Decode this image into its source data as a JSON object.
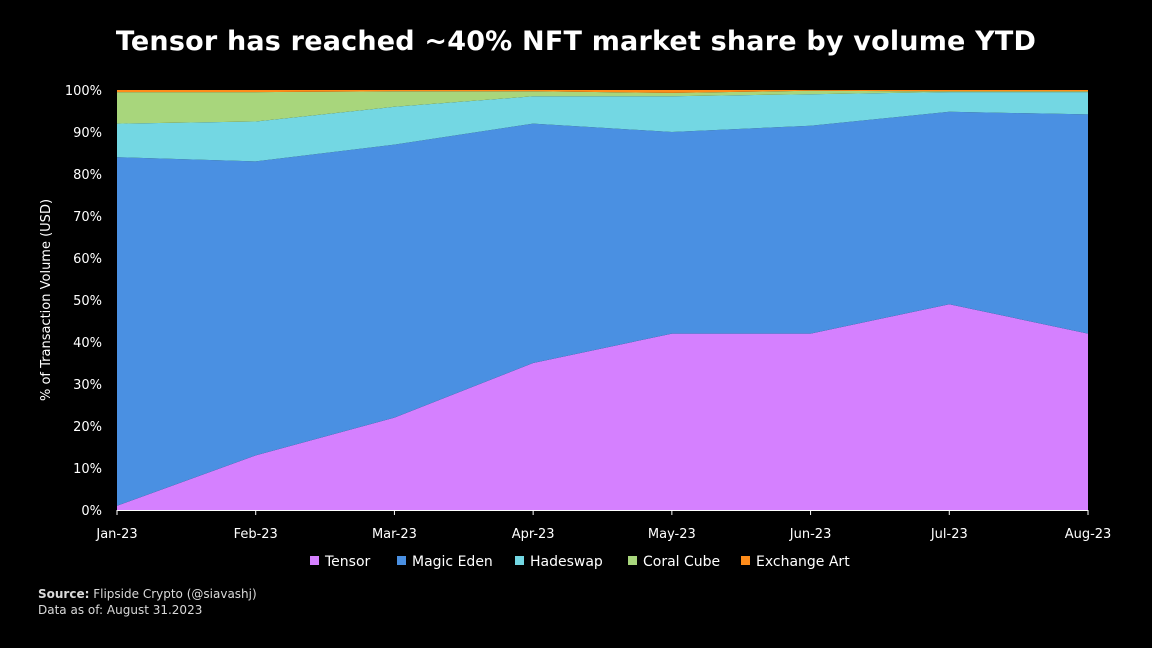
{
  "title": "Tensor has reached ~40% NFT market share by volume YTD",
  "source_label": "Source:",
  "source_text": "Flipside Crypto (@siavashj)",
  "data_as_of_label": "Data as of:",
  "data_as_of_text": "August 31.2023",
  "chart_data": {
    "type": "area",
    "stacked": true,
    "normalized": true,
    "ylabel": "% of Transaction Volume (USD)",
    "xlabel": "",
    "ylim": [
      0,
      100
    ],
    "y_ticks": [
      "0%",
      "10%",
      "20%",
      "30%",
      "40%",
      "50%",
      "60%",
      "70%",
      "80%",
      "90%",
      "100%"
    ],
    "categories": [
      "Jan-23",
      "Feb-23",
      "Mar-23",
      "Apr-23",
      "May-23",
      "Jun-23",
      "Jul-23",
      "Aug-23"
    ],
    "legend_position": "bottom",
    "series": [
      {
        "name": "Tensor",
        "color": "#D580FF",
        "values": [
          1,
          13,
          22,
          35,
          42,
          42,
          49,
          42
        ]
      },
      {
        "name": "Magic Eden",
        "color": "#4A90E2",
        "values": [
          83,
          70,
          65,
          57,
          48,
          49.5,
          45.8,
          52.2
        ]
      },
      {
        "name": "Hadeswap",
        "color": "#73D7E3",
        "values": [
          8,
          9.5,
          9,
          6.5,
          8.5,
          7.5,
          4.7,
          5.3
        ]
      },
      {
        "name": "Coral Cube",
        "color": "#A8D67C",
        "values": [
          7.5,
          7,
          3.7,
          1.2,
          0.8,
          0.8,
          0.2,
          0.2
        ]
      },
      {
        "name": "Exchange Art",
        "color": "#FF8C1A",
        "values": [
          0.5,
          0.5,
          0.3,
          0.3,
          0.7,
          0.2,
          0.3,
          0.3
        ]
      }
    ]
  }
}
